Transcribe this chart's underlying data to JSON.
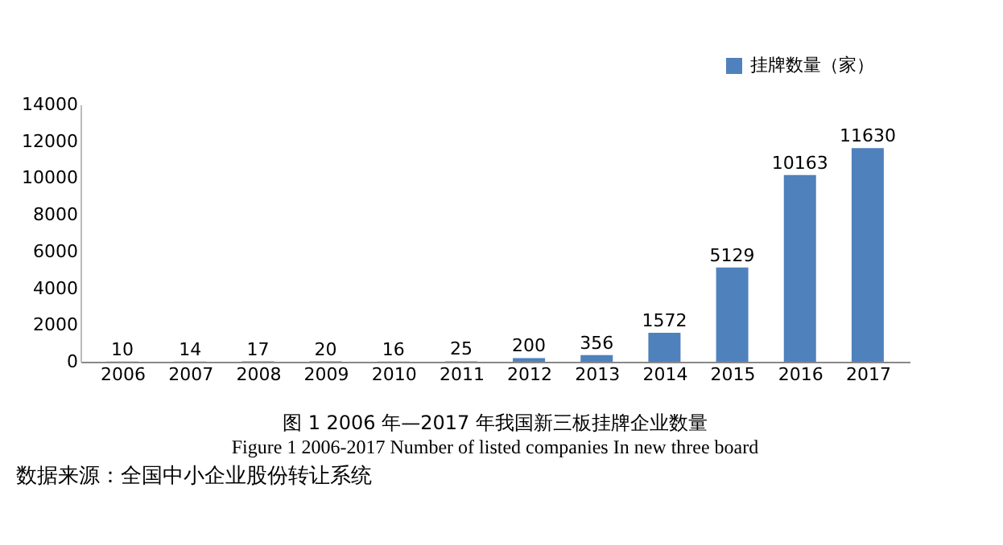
{
  "chart_data": {
    "type": "bar",
    "title": "图 1  2006 年—2017 年我国新三板挂牌企业数量",
    "subtitle": "Figure 1    2006-2017 Number of listed companies In new three board",
    "categories": [
      "2006",
      "2007",
      "2008",
      "2009",
      "2010",
      "2011",
      "2012",
      "2013",
      "2014",
      "2015",
      "2016",
      "2017"
    ],
    "series": [
      {
        "name": "挂牌数量（家）",
        "color": "#4f81bd",
        "values": [
          10,
          14,
          17,
          20,
          16,
          25,
          200,
          356,
          1572,
          5129,
          10163,
          11630
        ]
      }
    ],
    "ylim": [
      0,
      14000
    ],
    "yticks": [
      0,
      2000,
      4000,
      6000,
      8000,
      10000,
      12000,
      14000
    ],
    "grid": false,
    "legend": "top right",
    "data_labels": true,
    "annotations": [
      "数据来源：全国中小企业股份转让系统"
    ]
  }
}
